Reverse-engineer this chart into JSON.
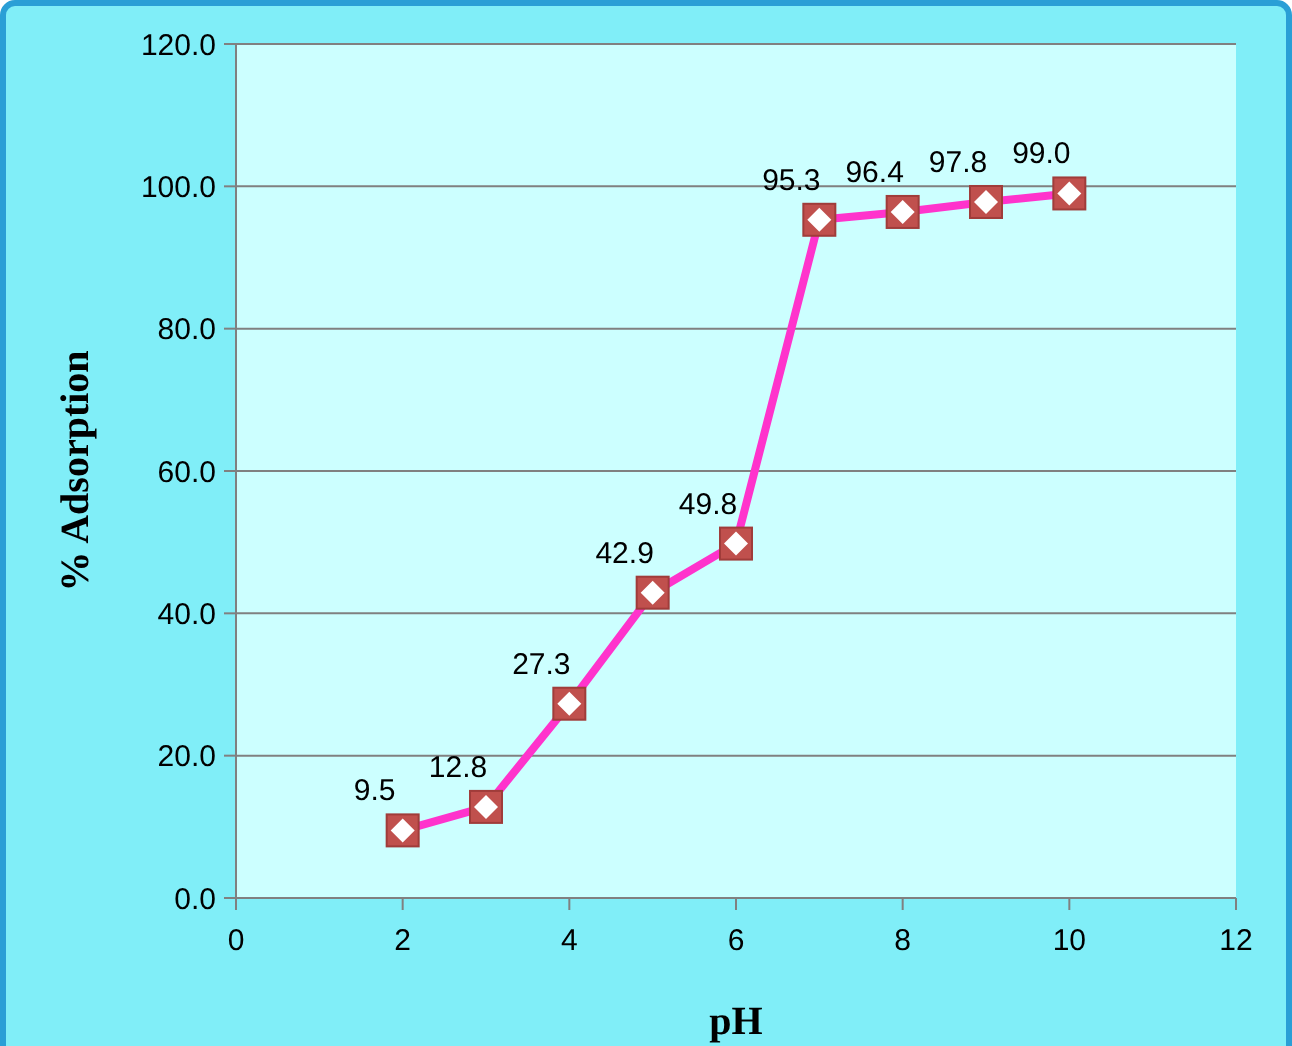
{
  "chart_data": {
    "type": "line",
    "xlabel": "pH",
    "ylabel": "% Adsorption",
    "x": [
      2,
      3,
      4,
      5,
      6,
      7,
      8,
      9,
      10
    ],
    "series": [
      {
        "color": "#ff33cc",
        "values": [
          9.5,
          12.8,
          27.3,
          42.9,
          49.8,
          95.3,
          96.4,
          97.8,
          99.0
        ],
        "value_labels": [
          "9.5",
          "12.8",
          "27.3",
          "42.9",
          "49.8",
          "95.3",
          "96.4",
          "97.8",
          "99.0"
        ]
      }
    ],
    "xlim": [
      0,
      12
    ],
    "xticks": [
      0,
      2,
      4,
      6,
      8,
      10,
      12
    ],
    "ylim": [
      0,
      120
    ],
    "yticks": [
      {
        "value": 0,
        "label": "0.0"
      },
      {
        "value": 20,
        "label": "20.0"
      },
      {
        "value": 40,
        "label": "40.0"
      },
      {
        "value": 60,
        "label": "60.0"
      },
      {
        "value": 80,
        "label": "80.0"
      },
      {
        "value": 100,
        "label": "100.0"
      },
      {
        "value": 120,
        "label": "120.0"
      }
    ],
    "grid": "y",
    "marker": "square",
    "line_style": "solid"
  }
}
